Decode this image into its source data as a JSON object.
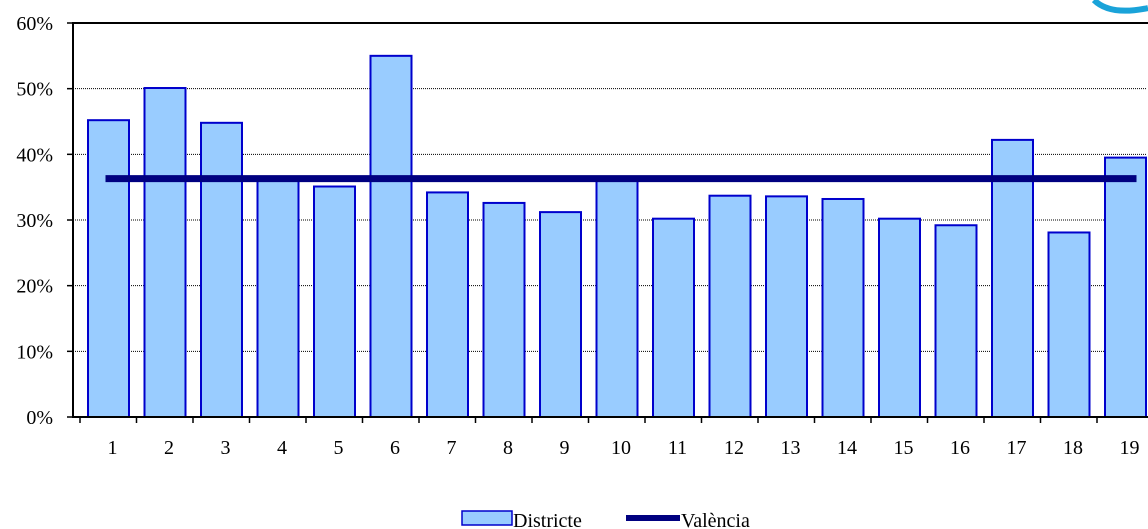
{
  "chart_data": {
    "type": "bar",
    "title": "",
    "xlabel": "",
    "ylabel": "",
    "categories": [
      "1",
      "2",
      "3",
      "4",
      "5",
      "6",
      "7",
      "8",
      "9",
      "10",
      "11",
      "12",
      "13",
      "14",
      "15",
      "16",
      "17",
      "18",
      "19"
    ],
    "series": [
      {
        "name": "Districte",
        "type": "bar",
        "values": [
          45.2,
          50.1,
          44.8,
          36.3,
          35.1,
          55.0,
          34.2,
          32.6,
          31.2,
          36.3,
          30.2,
          33.7,
          33.6,
          33.2,
          30.2,
          29.2,
          42.2,
          28.1,
          39.5
        ],
        "color": "#99ccff",
        "border": "#0000cc"
      },
      {
        "name": "València",
        "type": "line",
        "value": 36.3,
        "color": "#000080"
      }
    ],
    "ylim": [
      0,
      60
    ],
    "y_ticks": [
      "0%",
      "10%",
      "20%",
      "30%",
      "40%",
      "50%",
      "60%"
    ],
    "y_tick_values": [
      0,
      10,
      20,
      30,
      40,
      50,
      60
    ],
    "grid": true,
    "legend_position": "bottom"
  }
}
